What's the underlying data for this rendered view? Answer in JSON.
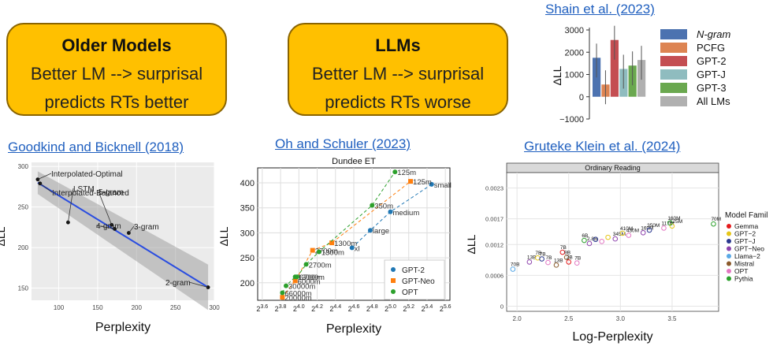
{
  "boxes": {
    "older": {
      "title": "Older Models",
      "line1": "Better LM --> surprisal",
      "line2": "predicts RTs better"
    },
    "llms": {
      "title": "LLMs",
      "line1": "Better LM --> surprisal",
      "line2": "predicts RTs worse"
    }
  },
  "citations": {
    "shain": "Shain et al. (2023)",
    "goodkind": "Goodkind and Bicknell (2018)",
    "oh": "Oh and Schuler (2023)",
    "gruteke": "Gruteke Klein et al. (2024)"
  },
  "colors": {
    "box": "#ffc000",
    "link": "#1f5fbf"
  },
  "chart_data": [
    {
      "type": "bar",
      "ylabel": "ΔLL",
      "yticks": [
        "3000",
        "2000",
        "1000",
        "0",
        "−1000"
      ],
      "ylim": [
        -1000,
        3000
      ],
      "categories": [
        "N-gram",
        "PCFG",
        "GPT-2",
        "GPT-J",
        "GPT-3",
        "All LMs"
      ],
      "values": [
        1750,
        550,
        2550,
        1250,
        1400,
        1650
      ],
      "colors": [
        "#4c72b0",
        "#dd8452",
        "#c44e52",
        "#8fbcbf",
        "#6aa84f",
        "#b0b0b0"
      ],
      "legend": [
        "N-gram",
        "PCFG",
        "GPT-2",
        "GPT-J",
        "GPT-3",
        "All LMs"
      ]
    },
    {
      "type": "scatter",
      "xlabel": "Perplexity",
      "ylabel": "ΔLL",
      "xticks": [
        "100",
        "150",
        "200",
        "250",
        "300"
      ],
      "yticks": [
        "300",
        "250",
        "200",
        "150"
      ],
      "xlim": [
        65,
        300
      ],
      "ylim": [
        135,
        305
      ],
      "points": [
        {
          "x": 73,
          "y": 284,
          "label": "Interpolated-Optimal"
        },
        {
          "x": 76,
          "y": 279,
          "label": "Interpolated-Balanced"
        },
        {
          "x": 112,
          "y": 231,
          "label": "LSTM"
        },
        {
          "x": 168,
          "y": 228,
          "label": "5-gram"
        },
        {
          "x": 172,
          "y": 223,
          "label": "4-gram"
        },
        {
          "x": 190,
          "y": 218,
          "label": "3-gram"
        },
        {
          "x": 292,
          "y": 151,
          "label": "2-gram"
        }
      ],
      "fit": [
        [
          73,
          280
        ],
        [
          292,
          151
        ]
      ]
    },
    {
      "type": "scatter",
      "title": "Dundee ET",
      "xlabel": "Perplexity",
      "ylabel": "ΔLL",
      "xticks": [
        "2^3.6",
        "2^3.8",
        "2^4.0",
        "2^4.2",
        "2^4.4",
        "2^4.6",
        "2^4.8",
        "2^5.0",
        "2^5.2",
        "2^5.4",
        "2^5.6"
      ],
      "yticks": [
        "400",
        "350",
        "300",
        "250",
        "200"
      ],
      "xlim": [
        3.55,
        5.65
      ],
      "ylim": [
        165,
        430
      ],
      "legend": [
        "GPT-2",
        "GPT-Neo",
        "OPT"
      ],
      "series": [
        {
          "name": "GPT-2",
          "color": "#1f77b4",
          "points": [
            {
              "x": 4.58,
              "y": 270,
              "label": "xl"
            },
            {
              "x": 4.78,
              "y": 305,
              "label": "large"
            },
            {
              "x": 5.0,
              "y": 342,
              "label": "medium"
            },
            {
              "x": 5.45,
              "y": 397,
              "label": "small"
            }
          ]
        },
        {
          "name": "GPT-Neo",
          "color": "#ff7f0e",
          "points": [
            {
              "x": 3.82,
              "y": 171,
              "label": "20000m"
            },
            {
              "x": 3.96,
              "y": 204,
              "label": "6000m"
            },
            {
              "x": 4.15,
              "y": 265,
              "label": "2700m"
            },
            {
              "x": 4.36,
              "y": 280,
              "label": "1300m"
            },
            {
              "x": 5.22,
              "y": 403,
              "label": "125m"
            }
          ]
        },
        {
          "name": "OPT",
          "color": "#2ca02c",
          "points": [
            {
              "x": 3.82,
              "y": 180,
              "label": "66000m"
            },
            {
              "x": 3.86,
              "y": 194,
              "label": "30000m"
            },
            {
              "x": 3.96,
              "y": 212,
              "label": "13000m"
            },
            {
              "x": 3.98,
              "y": 212,
              "label": "6700m"
            },
            {
              "x": 4.08,
              "y": 237,
              "label": "2700m"
            },
            {
              "x": 4.22,
              "y": 262,
              "label": "1300m"
            },
            {
              "x": 4.8,
              "y": 355,
              "label": "350m"
            },
            {
              "x": 5.05,
              "y": 422,
              "label": "125m"
            }
          ]
        }
      ]
    },
    {
      "type": "scatter",
      "title": "Ordinary Reading",
      "xlabel": "Log-Perplexity",
      "ylabel": "ΔLL",
      "xticks": [
        "2.0",
        "2.5",
        "3.0",
        "3.5"
      ],
      "yticks": [
        "0.0023",
        "0.0017",
        "0.0012",
        "0.0006",
        "0"
      ],
      "xlim": [
        1.9,
        3.95
      ],
      "ylim": [
        -0.0001,
        0.0026
      ],
      "legend_title": "Model Famil",
      "legend": [
        "Gemma",
        "GPT−2",
        "GPT−J",
        "GPT−Neo",
        "Llama−2",
        "Mistral",
        "OPT",
        "Pythia"
      ],
      "legend_colors": [
        "#e41a1c",
        "#e6c619",
        "#2b3990",
        "#8e44ad",
        "#5aa9e6",
        "#8b5a2b",
        "#e377c2",
        "#2ca02c"
      ],
      "points": [
        {
          "x": 1.96,
          "y": 0.00072,
          "c": "#5aa9e6",
          "label": "70B"
        },
        {
          "x": 2.12,
          "y": 0.00086,
          "c": "#8e44ad",
          "label": "13B"
        },
        {
          "x": 2.2,
          "y": 0.00094,
          "c": "#e6c619",
          "label": "7B"
        },
        {
          "x": 2.24,
          "y": 0.00092,
          "c": "#2b3990",
          "label": "7B"
        },
        {
          "x": 2.3,
          "y": 0.00085,
          "c": "#e377c2",
          "label": "7B"
        },
        {
          "x": 2.38,
          "y": 0.0008,
          "c": "#8b5a2b",
          "label": "13B"
        },
        {
          "x": 2.44,
          "y": 0.00105,
          "c": "#e41a1c",
          "label": "7B"
        },
        {
          "x": 2.48,
          "y": 0.00095,
          "c": "#8b5a2b",
          "label": "9B"
        },
        {
          "x": 2.5,
          "y": 0.00086,
          "c": "#e41a1c",
          "label": "2B"
        },
        {
          "x": 2.58,
          "y": 0.00084,
          "c": "#e377c2",
          "label": "7B"
        },
        {
          "x": 2.65,
          "y": 0.00128,
          "c": "#2ca02c",
          "label": "6B"
        },
        {
          "x": 2.7,
          "y": 0.00122,
          "c": "#8e44ad",
          "label": "2.8B"
        },
        {
          "x": 2.76,
          "y": 0.0013,
          "c": "#2b3990",
          "label": ""
        },
        {
          "x": 2.82,
          "y": 0.00126,
          "c": "#e377c2",
          "label": ""
        },
        {
          "x": 2.88,
          "y": 0.00134,
          "c": "#e6c619",
          "label": ""
        },
        {
          "x": 2.95,
          "y": 0.00131,
          "c": "#8e44ad",
          "label": "345M"
        },
        {
          "x": 3.02,
          "y": 0.00142,
          "c": "#e6c619",
          "label": "410M"
        },
        {
          "x": 3.08,
          "y": 0.00138,
          "c": "#e377c2",
          "label": "430M"
        },
        {
          "x": 3.22,
          "y": 0.00143,
          "c": "#8e44ad",
          "label": "169M"
        },
        {
          "x": 3.28,
          "y": 0.00148,
          "c": "#2b3990",
          "label": "350M"
        },
        {
          "x": 3.42,
          "y": 0.00152,
          "c": "#e377c2",
          "label": "117M"
        },
        {
          "x": 3.5,
          "y": 0.00156,
          "c": "#e6c619",
          "label": "125M"
        },
        {
          "x": 3.48,
          "y": 0.00162,
          "c": "#2ca02c",
          "label": "160M"
        },
        {
          "x": 3.9,
          "y": 0.0016,
          "c": "#2ca02c",
          "label": "70M"
        }
      ]
    }
  ]
}
